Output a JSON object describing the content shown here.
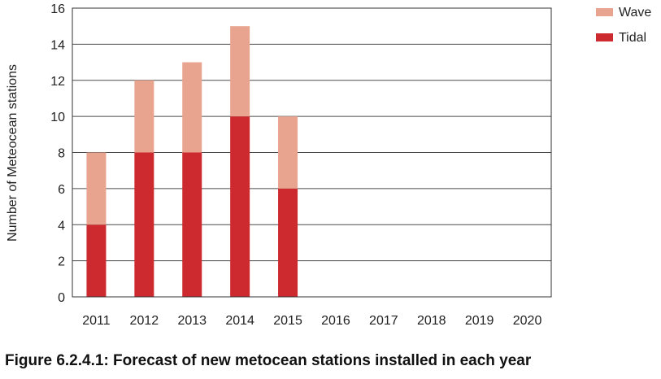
{
  "caption": "Figure 6.2.4.1: Forecast of new metocean stations installed in each year",
  "chart_data": {
    "type": "bar",
    "stacked": true,
    "categories": [
      "2011",
      "2012",
      "2013",
      "2014",
      "2015",
      "2016",
      "2017",
      "2018",
      "2019",
      "2020"
    ],
    "series": [
      {
        "name": "Tidal",
        "values": [
          4,
          8,
          8,
          10,
          6,
          0,
          0,
          0,
          0,
          0
        ],
        "color": "#cc2a2f"
      },
      {
        "name": "Wave",
        "values": [
          4,
          4,
          5,
          5,
          4,
          0,
          0,
          0,
          0,
          0
        ],
        "color": "#e8a48f"
      }
    ],
    "ylabel": "Number of Meteocean stations",
    "xlabel": "",
    "ylim": [
      0,
      16
    ],
    "yticks": [
      0,
      2,
      4,
      6,
      8,
      10,
      12,
      14,
      16
    ],
    "grid": true,
    "legend": {
      "position": "top-right",
      "order": [
        "Wave",
        "Tidal"
      ]
    }
  }
}
